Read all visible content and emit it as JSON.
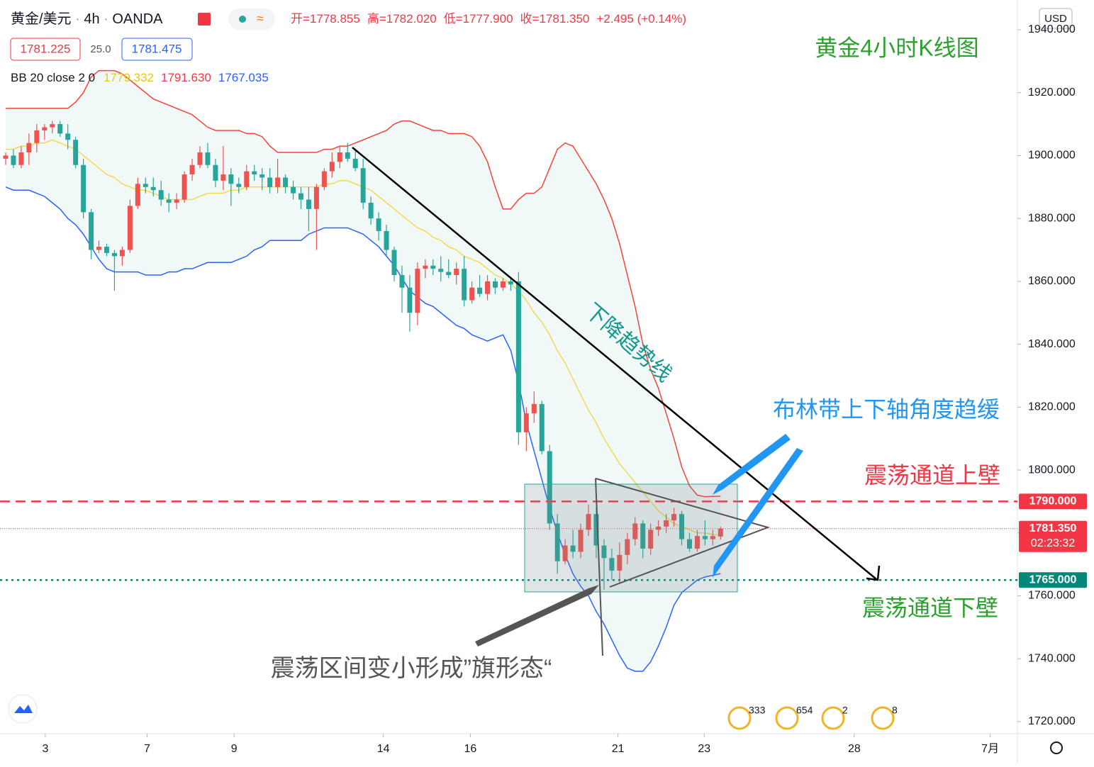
{
  "header": {
    "symbol": "黄金/美元",
    "interval": "4h",
    "source": "OANDA",
    "ohlc": [
      "开=1778.855",
      "高=1782.020",
      "低=1777.900",
      "收=1781.350"
    ],
    "change": "+2.495 (+0.14%)",
    "bid": "1781.225",
    "spread": "25.0",
    "ask": "1781.475",
    "indicator": "BB 20 close 2 0",
    "indicator_values": [
      "1779.332",
      "1791.630",
      "1767.035"
    ],
    "currency": "USD"
  },
  "chart_data": {
    "type": "candlestick",
    "title": "黄金4小时K线图",
    "up_color": "#ef5350",
    "down_color": "#26a69a",
    "open": [
      1899,
      1900,
      1897,
      1901,
      1904,
      1908,
      1909,
      1910,
      1907,
      1905,
      1897,
      1882,
      1870,
      1871,
      1869,
      1868,
      1870,
      1884,
      1891,
      1890,
      1889,
      1886,
      1885,
      1886,
      1894,
      1897,
      1901,
      1897,
      1892,
      1894,
      1891,
      1890,
      1895,
      1894,
      1893,
      1890,
      1893,
      1890,
      1888,
      1886,
      1883,
      1890,
      1895,
      1898,
      1901,
      1899,
      1896,
      1885,
      1880,
      1876,
      1870,
      1862,
      1858,
      1850,
      1864,
      1865,
      1864,
      1863,
      1862,
      1864,
      1854,
      1858,
      1856,
      1860,
      1858,
      1860,
      1860,
      1812,
      1818,
      1821,
      1806,
      1783,
      1771,
      1776,
      1774,
      1781,
      1786,
      1776,
      1772,
      1768,
      1773,
      1778,
      1783,
      1775,
      1781,
      1782,
      1784,
      1786,
      1778,
      1775,
      1779,
      1778,
      1778.855
    ],
    "high": [
      1901,
      1902,
      1903,
      1907,
      1910,
      1910,
      1911,
      1911,
      1910,
      1906,
      1899,
      1883,
      1873,
      1872,
      1870,
      1871,
      1886,
      1893,
      1893,
      1893,
      1892,
      1888,
      1888,
      1895,
      1899,
      1903,
      1904,
      1899,
      1903,
      1896,
      1893,
      1897,
      1897,
      1896,
      1896,
      1899,
      1894,
      1892,
      1890,
      1890,
      1891,
      1896,
      1901,
      1903,
      1904,
      1902,
      1899,
      1887,
      1882,
      1878,
      1871,
      1865,
      1862,
      1866,
      1867,
      1867,
      1868,
      1867,
      1866,
      1868,
      1860,
      1862,
      1862,
      1861,
      1861,
      1861,
      1863,
      1820,
      1825,
      1822,
      1808,
      1786,
      1778,
      1781,
      1783,
      1789,
      1788,
      1778,
      1775,
      1777,
      1780,
      1785,
      1784,
      1783,
      1784,
      1786,
      1788,
      1787,
      1780,
      1781,
      1784,
      1781,
      1782.02
    ],
    "low": [
      1897,
      1896,
      1896,
      1897,
      1901,
      1905,
      1907,
      1906,
      1902,
      1896,
      1880,
      1867,
      1869,
      1868,
      1857,
      1865,
      1869,
      1883,
      1888,
      1887,
      1884,
      1882,
      1883,
      1885,
      1892,
      1896,
      1896,
      1890,
      1889,
      1884,
      1888,
      1889,
      1892,
      1889,
      1888,
      1888,
      1888,
      1886,
      1883,
      1876,
      1870,
      1889,
      1893,
      1896,
      1898,
      1895,
      1883,
      1878,
      1873,
      1868,
      1860,
      1850,
      1844,
      1846,
      1861,
      1862,
      1860,
      1861,
      1859,
      1852,
      1853,
      1855,
      1854,
      1856,
      1857,
      1857,
      1808,
      1806,
      1815,
      1805,
      1781,
      1767,
      1770,
      1772,
      1772,
      1779,
      1772,
      1762,
      1765,
      1764,
      1770,
      1776,
      1772,
      1773,
      1779,
      1780,
      1782,
      1776,
      1774,
      1774,
      1776,
      1776,
      1777.9
    ],
    "close": [
      1900,
      1897,
      1901,
      1904,
      1908,
      1909,
      1910,
      1907,
      1905,
      1897,
      1882,
      1870,
      1871,
      1869,
      1868,
      1870,
      1884,
      1891,
      1890,
      1889,
      1886,
      1885,
      1886,
      1894,
      1897,
      1901,
      1897,
      1892,
      1894,
      1891,
      1890,
      1895,
      1894,
      1893,
      1890,
      1893,
      1890,
      1888,
      1886,
      1883,
      1890,
      1895,
      1898,
      1901,
      1899,
      1896,
      1885,
      1880,
      1876,
      1870,
      1862,
      1858,
      1850,
      1864,
      1865,
      1864,
      1863,
      1862,
      1864,
      1854,
      1858,
      1856,
      1860,
      1858,
      1860,
      1859,
      1812,
      1818,
      1821,
      1806,
      1783,
      1771,
      1776,
      1774,
      1781,
      1786,
      1776,
      1772,
      1768,
      1773,
      1778,
      1783,
      1775,
      1781,
      1782,
      1784,
      1786,
      1778,
      1775,
      1779,
      1778,
      1779,
      1781.35
    ],
    "bollinger": {
      "upper_color": "#f44336",
      "middle_color": "#f2d94e",
      "lower_color": "#2962ff",
      "upper": [
        1915,
        1915,
        1915,
        1915,
        1915,
        1915,
        1915,
        1915,
        1915,
        1917,
        1920,
        1925,
        1927,
        1927,
        1927,
        1926,
        1924,
        1922,
        1920,
        1918,
        1917,
        1916,
        1915,
        1914,
        1913,
        1911,
        1909,
        1908,
        1908,
        1908,
        1908,
        1907,
        1907,
        1906,
        1903,
        1901,
        1901,
        1901,
        1901,
        1901,
        1901,
        1902,
        1902,
        1903,
        1903,
        1904,
        1905,
        1906,
        1907,
        1908,
        1910,
        1911,
        1911,
        1910,
        1909,
        1908,
        1908,
        1907,
        1907,
        1907,
        1906,
        1903,
        1898,
        1890,
        1883,
        1883,
        1886,
        1888,
        1888,
        1890,
        1896,
        1902,
        1904,
        1903,
        1899,
        1895,
        1891,
        1886,
        1880,
        1872,
        1862,
        1852,
        1840,
        1832,
        1826,
        1818,
        1810,
        1801,
        1795,
        1792,
        1791.5,
        1791.6,
        1791.63
      ],
      "middle": [
        1902,
        1902,
        1903,
        1903,
        1904,
        1904,
        1905,
        1904,
        1903,
        1902,
        1900,
        1898,
        1896,
        1894,
        1893,
        1891,
        1890,
        1889,
        1889,
        1888,
        1887,
        1886,
        1886,
        1886,
        1886,
        1887,
        1888,
        1888,
        1888,
        1889,
        1889,
        1890,
        1890,
        1890,
        1890,
        1890,
        1890,
        1890,
        1890,
        1890,
        1890,
        1891,
        1891,
        1892,
        1892,
        1891,
        1890,
        1889,
        1887,
        1885,
        1883,
        1881,
        1879,
        1877,
        1876,
        1874,
        1873,
        1871,
        1870,
        1868,
        1867,
        1866,
        1864,
        1862,
        1861,
        1859,
        1857,
        1854,
        1850,
        1847,
        1843,
        1838,
        1834,
        1829,
        1824,
        1819,
        1815,
        1810,
        1806,
        1802,
        1799,
        1796,
        1793,
        1790,
        1787,
        1785,
        1783,
        1782,
        1781,
        1780,
        1780,
        1779.5,
        1779.332
      ],
      "lower": [
        1890,
        1889,
        1889,
        1889,
        1888,
        1887,
        1885,
        1883,
        1880,
        1878,
        1875,
        1871,
        1867,
        1864,
        1863,
        1863,
        1863,
        1863,
        1862,
        1862,
        1862,
        1863,
        1863,
        1864,
        1864,
        1865,
        1866,
        1866,
        1866,
        1866,
        1867,
        1868,
        1870,
        1871,
        1873,
        1873,
        1873,
        1873,
        1873,
        1875,
        1876,
        1877,
        1877,
        1877,
        1877,
        1876,
        1875,
        1873,
        1871,
        1868,
        1865,
        1861,
        1857,
        1855,
        1853,
        1852,
        1850,
        1848,
        1846,
        1845,
        1843,
        1842,
        1841,
        1842,
        1843,
        1838,
        1828,
        1815,
        1806,
        1797,
        1788,
        1780,
        1773,
        1767,
        1763,
        1760,
        1755,
        1751,
        1746,
        1741,
        1737,
        1736,
        1736,
        1739,
        1744,
        1750,
        1757,
        1761,
        1763,
        1765,
        1766,
        1766.5,
        1767.035
      ]
    },
    "xlim": [
      -0.73,
      130.2
    ],
    "xticks": [
      {
        "value": 5.1,
        "label": "3"
      },
      {
        "value": 18.2,
        "label": "7"
      },
      {
        "value": 29.4,
        "label": "9"
      },
      {
        "value": 48.6,
        "label": "14"
      },
      {
        "value": 59.8,
        "label": "16"
      },
      {
        "value": 78.8,
        "label": "21"
      },
      {
        "value": 89.9,
        "label": "23"
      },
      {
        "value": 109.2,
        "label": "28"
      },
      {
        "value": 126.7,
        "label": "7月"
      }
    ],
    "ylim": [
      1716.15,
      1949.47
    ],
    "yticks": [
      {
        "value": 1720,
        "label": "1720.000"
      },
      {
        "value": 1740,
        "label": "1740.000"
      },
      {
        "value": 1760,
        "label": "1760.000"
      },
      {
        "value": 1780,
        "label": "1780.000"
      },
      {
        "value": 1800,
        "label": "1800.000"
      },
      {
        "value": 1820,
        "label": "1820.000"
      },
      {
        "value": 1840,
        "label": "1840.000"
      },
      {
        "value": 1860,
        "label": "1860.000"
      },
      {
        "value": 1880,
        "label": "1880.000"
      },
      {
        "value": 1900,
        "label": "1900.000"
      },
      {
        "value": 1920,
        "label": "1920.000"
      },
      {
        "value": 1940,
        "label": "1940.000"
      }
    ],
    "price_lines": [
      {
        "value": 1790,
        "label": "1790.000",
        "color": "#f23645",
        "style": "dashed"
      },
      {
        "value": 1765,
        "label": "1765.000",
        "color": "#00897b",
        "style": "dotted"
      },
      {
        "value": 1781.35,
        "label": "1781.350",
        "countdown": "02:23:32",
        "color": "#f23645",
        "style": "thin"
      }
    ],
    "annotations": {
      "trend": "下降趋势线",
      "bands": "布林带上下轴角度趋缓",
      "upper_wall": "震荡通道上壁",
      "lower_wall": "震荡通道下壁",
      "flag": "震荡区间变小形成”旗形态“"
    },
    "events": [
      "333",
      "654",
      "2",
      "8"
    ]
  }
}
